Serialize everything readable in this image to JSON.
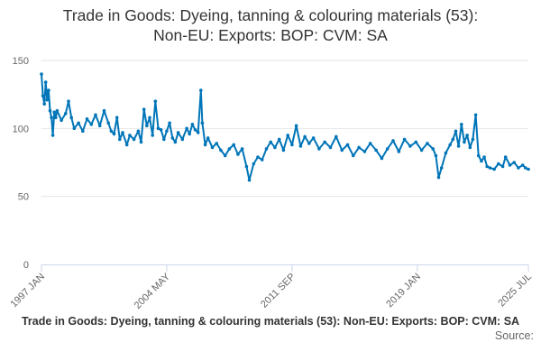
{
  "chart_data": {
    "type": "line",
    "title_line1": "Trade in Goods: Dyeing, tanning & colouring materials (53):",
    "title_line2": "Non-EU: Exports: BOP: CVM: SA",
    "xlabel": "",
    "ylabel": "",
    "ylim": [
      0,
      150
    ],
    "yticks": [
      0,
      50,
      100,
      150
    ],
    "xlim": [
      "1997-01",
      "2025-07"
    ],
    "xticks": [
      "1997 JAN",
      "2004 MAY",
      "2011 SEP",
      "2019 JAN",
      "2025 JUL"
    ],
    "grid": true,
    "legend": "none",
    "footer_title": "Trade in Goods: Dyeing, tanning & colouring materials (53): Non-EU: Exports: BOP: CVM: SA",
    "footer_source": "Source:",
    "series": [
      {
        "color": "#0075B8",
        "points": [
          [
            "1997-01",
            140
          ],
          [
            "1997-02",
            124
          ],
          [
            "1997-03",
            118
          ],
          [
            "1997-04",
            134
          ],
          [
            "1997-05",
            121
          ],
          [
            "1997-06",
            128
          ],
          [
            "1997-07",
            113
          ],
          [
            "1997-08",
            108
          ],
          [
            "1997-09",
            95
          ],
          [
            "1997-10",
            112
          ],
          [
            "1997-11",
            108
          ],
          [
            "1997-12",
            113
          ],
          [
            "1998-03",
            106
          ],
          [
            "1998-06",
            111
          ],
          [
            "1998-08",
            120
          ],
          [
            "1998-10",
            108
          ],
          [
            "1998-12",
            100
          ],
          [
            "1999-03",
            104
          ],
          [
            "1999-06",
            98
          ],
          [
            "1999-09",
            107
          ],
          [
            "1999-12",
            103
          ],
          [
            "2000-03",
            110
          ],
          [
            "2000-06",
            102
          ],
          [
            "2000-09",
            113
          ],
          [
            "2000-12",
            104
          ],
          [
            "2001-02",
            98
          ],
          [
            "2001-04",
            96
          ],
          [
            "2001-06",
            108
          ],
          [
            "2001-08",
            92
          ],
          [
            "2001-10",
            97
          ],
          [
            "2002-01",
            88
          ],
          [
            "2002-03",
            95
          ],
          [
            "2002-06",
            92
          ],
          [
            "2002-09",
            98
          ],
          [
            "2002-11",
            90
          ],
          [
            "2003-01",
            114
          ],
          [
            "2003-03",
            102
          ],
          [
            "2003-05",
            108
          ],
          [
            "2003-07",
            95
          ],
          [
            "2003-09",
            120
          ],
          [
            "2003-11",
            100
          ],
          [
            "2004-01",
            99
          ],
          [
            "2004-03",
            92
          ],
          [
            "2004-05",
            98
          ],
          [
            "2004-07",
            104
          ],
          [
            "2004-09",
            93
          ],
          [
            "2004-11",
            90
          ],
          [
            "2005-01",
            97
          ],
          [
            "2005-04",
            92
          ],
          [
            "2005-07",
            100
          ],
          [
            "2005-09",
            96
          ],
          [
            "2005-11",
            103
          ],
          [
            "2006-01",
            99
          ],
          [
            "2006-03",
            97
          ],
          [
            "2006-05",
            128
          ],
          [
            "2006-06",
            104
          ],
          [
            "2006-08",
            88
          ],
          [
            "2006-10",
            93
          ],
          [
            "2007-01",
            86
          ],
          [
            "2007-04",
            89
          ],
          [
            "2007-07",
            84
          ],
          [
            "2007-10",
            80
          ],
          [
            "2008-01",
            85
          ],
          [
            "2008-04",
            88
          ],
          [
            "2008-07",
            81
          ],
          [
            "2008-10",
            85
          ],
          [
            "2009-01",
            72
          ],
          [
            "2009-03",
            62
          ],
          [
            "2009-06",
            74
          ],
          [
            "2009-09",
            79
          ],
          [
            "2009-12",
            77
          ],
          [
            "2010-03",
            85
          ],
          [
            "2010-06",
            90
          ],
          [
            "2010-09",
            86
          ],
          [
            "2010-12",
            92
          ],
          [
            "2011-03",
            84
          ],
          [
            "2011-06",
            95
          ],
          [
            "2011-09",
            88
          ],
          [
            "2011-12",
            102
          ],
          [
            "2012-03",
            87
          ],
          [
            "2012-06",
            94
          ],
          [
            "2012-09",
            89
          ],
          [
            "2012-12",
            93
          ],
          [
            "2013-04",
            85
          ],
          [
            "2013-08",
            90
          ],
          [
            "2013-12",
            86
          ],
          [
            "2014-04",
            94
          ],
          [
            "2014-08",
            84
          ],
          [
            "2014-12",
            88
          ],
          [
            "2015-04",
            80
          ],
          [
            "2015-08",
            86
          ],
          [
            "2015-12",
            83
          ],
          [
            "2016-04",
            89
          ],
          [
            "2016-08",
            84
          ],
          [
            "2016-12",
            78
          ],
          [
            "2017-04",
            85
          ],
          [
            "2017-08",
            91
          ],
          [
            "2017-12",
            83
          ],
          [
            "2018-04",
            92
          ],
          [
            "2018-08",
            87
          ],
          [
            "2018-12",
            90
          ],
          [
            "2019-04",
            84
          ],
          [
            "2019-08",
            89
          ],
          [
            "2019-12",
            85
          ],
          [
            "2020-02",
            80
          ],
          [
            "2020-04",
            64
          ],
          [
            "2020-06",
            71
          ],
          [
            "2020-09",
            82
          ],
          [
            "2020-12",
            88
          ],
          [
            "2021-02",
            92
          ],
          [
            "2021-04",
            98
          ],
          [
            "2021-06",
            87
          ],
          [
            "2021-08",
            103
          ],
          [
            "2021-10",
            90
          ],
          [
            "2021-12",
            95
          ],
          [
            "2022-02",
            86
          ],
          [
            "2022-04",
            92
          ],
          [
            "2022-06",
            110
          ],
          [
            "2022-08",
            80
          ],
          [
            "2022-10",
            76
          ],
          [
            "2022-12",
            79
          ],
          [
            "2023-02",
            72
          ],
          [
            "2023-04",
            71
          ],
          [
            "2023-07",
            70
          ],
          [
            "2023-10",
            74
          ],
          [
            "2024-01",
            72
          ],
          [
            "2024-03",
            79
          ],
          [
            "2024-06",
            73
          ],
          [
            "2024-09",
            75
          ],
          [
            "2024-12",
            71
          ],
          [
            "2025-03",
            73
          ],
          [
            "2025-05",
            71
          ],
          [
            "2025-07",
            70
          ]
        ]
      }
    ]
  }
}
